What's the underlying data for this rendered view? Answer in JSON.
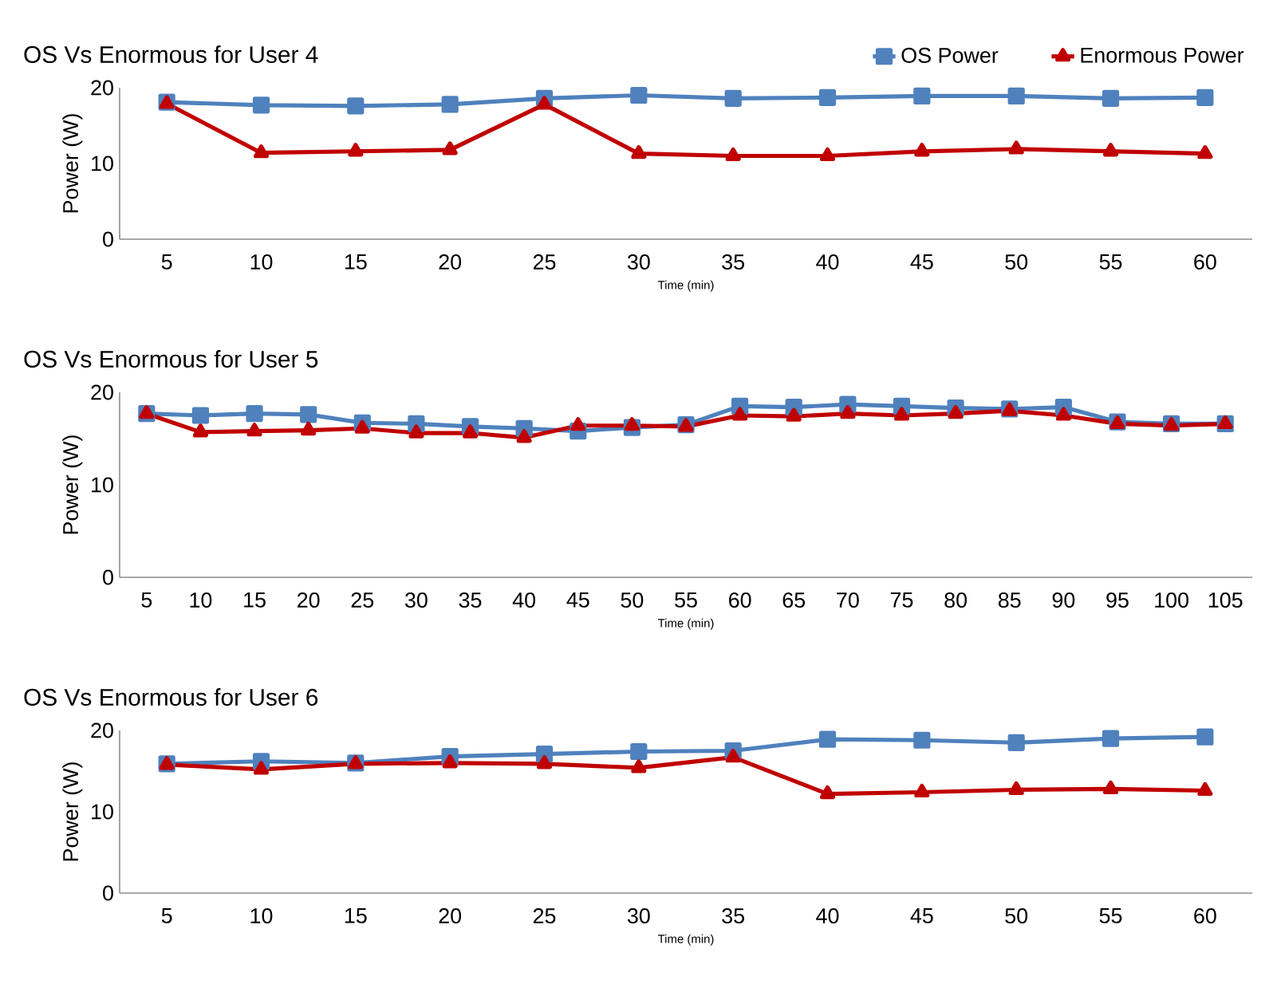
{
  "chart_data": [
    {
      "type": "line",
      "title": "OS  Vs Enormous for User 4",
      "xlabel": "Time (min)",
      "ylabel": "Power (W)",
      "categories": [
        "5",
        "10",
        "15",
        "20",
        "25",
        "30",
        "35",
        "40",
        "45",
        "50",
        "55",
        "60"
      ],
      "ylim": [
        0,
        20
      ],
      "yticks": [
        0,
        10,
        20
      ],
      "legend": "top right",
      "series": [
        {
          "name": "OS Power",
          "color": "#4f81bd",
          "marker": "square",
          "values": [
            18.1,
            17.7,
            17.6,
            17.8,
            18.6,
            19.0,
            18.6,
            18.7,
            18.9,
            18.9,
            18.6,
            18.7
          ]
        },
        {
          "name": "Enormous Power",
          "color": "#c00000",
          "marker": "triangle",
          "values": [
            17.9,
            11.4,
            11.6,
            11.8,
            17.8,
            11.3,
            11.0,
            11.0,
            11.6,
            11.9,
            11.6,
            11.3
          ]
        }
      ]
    },
    {
      "type": "line",
      "title": "OS  Vs Enormous for User 5",
      "xlabel": "Time (min)",
      "ylabel": "Power (W)",
      "categories": [
        "5",
        "10",
        "15",
        "20",
        "25",
        "30",
        "35",
        "40",
        "45",
        "50",
        "55",
        "60",
        "65",
        "70",
        "75",
        "80",
        "85",
        "90",
        "95",
        "100",
        "105"
      ],
      "ylim": [
        0,
        20
      ],
      "yticks": [
        0,
        10,
        20
      ],
      "series": [
        {
          "color": "#4f81bd",
          "marker": "square",
          "values": [
            17.7,
            17.5,
            17.7,
            17.6,
            16.7,
            16.6,
            16.3,
            16.1,
            15.8,
            16.2,
            16.5,
            18.5,
            18.4,
            18.7,
            18.5,
            18.3,
            18.2,
            18.4,
            16.8,
            16.6,
            16.6
          ]
        },
        {
          "color": "#c00000",
          "marker": "triangle",
          "values": [
            17.7,
            15.7,
            15.8,
            15.9,
            16.1,
            15.6,
            15.6,
            15.1,
            16.4,
            16.4,
            16.3,
            17.5,
            17.4,
            17.7,
            17.5,
            17.7,
            18.0,
            17.5,
            16.6,
            16.4,
            16.6
          ]
        }
      ]
    },
    {
      "type": "line",
      "title": "OS  Vs Enormous for User 6",
      "xlabel": "Time (min)",
      "ylabel": "Power (W)",
      "categories": [
        "5",
        "10",
        "15",
        "20",
        "25",
        "30",
        "35",
        "40",
        "45",
        "50",
        "55",
        "60"
      ],
      "ylim": [
        0,
        20
      ],
      "yticks": [
        0,
        10,
        20
      ],
      "series": [
        {
          "color": "#4f81bd",
          "marker": "square",
          "values": [
            15.9,
            16.2,
            16.0,
            16.8,
            17.1,
            17.4,
            17.5,
            18.9,
            18.8,
            18.5,
            19.0,
            19.2
          ]
        },
        {
          "color": "#c00000",
          "marker": "triangle",
          "values": [
            15.8,
            15.2,
            15.9,
            16.0,
            15.9,
            15.4,
            16.7,
            12.2,
            12.4,
            12.7,
            12.8,
            12.6
          ]
        }
      ]
    }
  ]
}
